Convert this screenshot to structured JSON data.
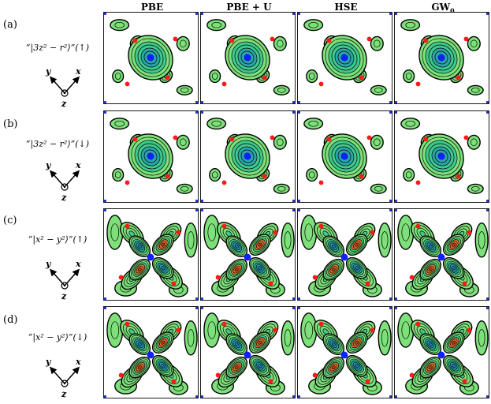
{
  "columns": [
    "PBE",
    "PBE + U",
    "HSE",
    "GW0"
  ],
  "rows": [
    {
      "letter": "(a)",
      "orbital": "“|3z² − r²⟩”(↑)",
      "type": "z2"
    },
    {
      "letter": "(b)",
      "orbital": "“|3z² − r²⟩”(↓)",
      "type": "z2"
    },
    {
      "letter": "(c)",
      "orbital": "“|x² − y²⟩”(↑)",
      "type": "x2y2"
    },
    {
      "letter": "(d)",
      "orbital": "“|x² − y²⟩”(↓)",
      "type": "x2y2"
    }
  ],
  "axis_labels": {
    "y": "y",
    "x": "x",
    "z": "z"
  },
  "colors": {
    "contour_light": "#7ee07a",
    "contour_mid": "#3fc98c",
    "contour_teal": "#2aa6a8",
    "contour_blue": "#2f6fd0",
    "contour_orange": "#e57a2a",
    "contour_red": "#c0392b",
    "center_atom": "#1020ff",
    "red_atom": "#ff1a1a",
    "corner_marker": "#2030c0"
  }
}
